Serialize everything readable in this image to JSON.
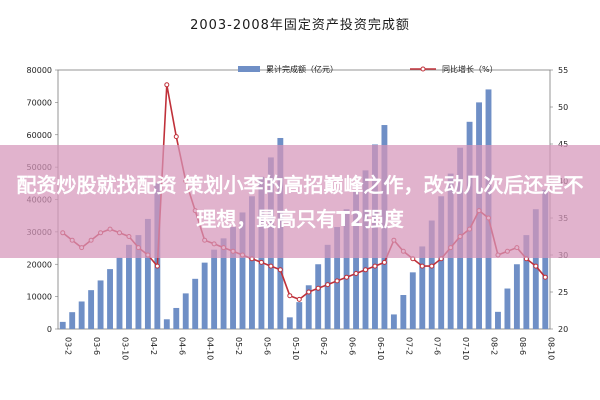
{
  "chart_data": {
    "type": "bar+line",
    "title": "2003-2008年固定资产投资完成额",
    "legend": [
      {
        "label": "累计完成额（亿元）",
        "kind": "bar",
        "color": "#6f8fc6"
      },
      {
        "label": "同比增长（%）",
        "kind": "line",
        "color": "#c0313a"
      }
    ],
    "y_left": {
      "min": 0,
      "max": 80000,
      "ticks": [
        "0",
        "10000",
        "20000",
        "30000",
        "40000",
        "50000",
        "60000",
        "70000",
        "80000"
      ]
    },
    "y_right": {
      "min": 20,
      "max": 55,
      "ticks": [
        "20",
        "25",
        "30",
        "35",
        "40",
        "45",
        "50",
        "55"
      ]
    },
    "x_tick_labels": [
      "03-2",
      "03-6",
      "03-10",
      "04-2",
      "04-6",
      "04-10",
      "05-2",
      "05-6",
      "05-10",
      "06-2",
      "06-6",
      "06-10",
      "07-2",
      "07-6",
      "07-10",
      "08-2",
      "08-6",
      "08-10"
    ],
    "bars": [
      2200,
      5200,
      8500,
      12000,
      15000,
      18500,
      22000,
      26000,
      29000,
      34000,
      45000,
      3000,
      6500,
      11000,
      15500,
      20500,
      24500,
      28000,
      31500,
      36000,
      41000,
      47000,
      53000,
      59000,
      3600,
      8300,
      13500,
      20000,
      26000,
      31500,
      37000,
      42500,
      49000,
      57000,
      63000,
      4500,
      10500,
      17500,
      25500,
      33500,
      41000,
      48000,
      56000,
      64000,
      70000,
      74000,
      5300,
      12500,
      20000,
      29000,
      37000,
      43000
    ],
    "growth": [
      33.0,
      32.0,
      31.0,
      32.0,
      33.0,
      33.5,
      33.0,
      32.5,
      31.0,
      30.0,
      28.5,
      53.0,
      46.0,
      40.0,
      36.0,
      32.0,
      31.5,
      31.0,
      30.5,
      30.0,
      29.5,
      29.0,
      28.5,
      28.0,
      24.5,
      24.0,
      25.0,
      25.5,
      26.0,
      26.5,
      27.0,
      27.5,
      28.0,
      28.5,
      29.0,
      32.0,
      30.5,
      29.5,
      28.5,
      28.5,
      29.5,
      31.0,
      32.5,
      33.5,
      36.0,
      35.0,
      30.0,
      30.5,
      31.0,
      29.5,
      28.5,
      27.0
    ]
  },
  "overlay": {
    "text": "配资炒股就找配资 策划小李的高招巅峰之作，改动几次后还是不理想，最高只有T2强度"
  }
}
